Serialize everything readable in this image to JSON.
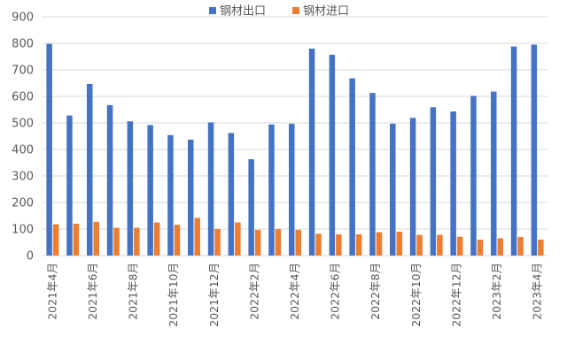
{
  "chart_data": {
    "type": "bar",
    "title": "",
    "xlabel": "",
    "ylabel": "",
    "ylim": [
      0,
      900
    ],
    "yticks": [
      0,
      100,
      200,
      300,
      400,
      500,
      600,
      700,
      800,
      900
    ],
    "grid": true,
    "legend_position": "top",
    "categories": [
      "2021年4月",
      "2021年5月",
      "2021年6月",
      "2021年7月",
      "2021年8月",
      "2021年9月",
      "2021年10月",
      "2021年11月",
      "2021年12月",
      "2022年1月",
      "2022年2月",
      "2022年3月",
      "2022年4月",
      "2022年5月",
      "2022年6月",
      "2022年7月",
      "2022年8月",
      "2022年9月",
      "2022年10月",
      "2022年11月",
      "2022年12月",
      "2023年1月",
      "2023年2月",
      "2023年3月",
      "2023年4月"
    ],
    "xtick_labels": [
      "2021年4月",
      "",
      "2021年6月",
      "",
      "2021年8月",
      "",
      "2021年10月",
      "",
      "2021年12月",
      "",
      "2022年2月",
      "",
      "2022年4月",
      "",
      "2022年6月",
      "",
      "2022年8月",
      "",
      "2022年10月",
      "",
      "2022年12月",
      "",
      "2023年2月",
      "",
      "2023年4月"
    ],
    "series": [
      {
        "name": "钢材出口",
        "color": "#4472c4",
        "values": [
          798,
          528,
          647,
          567,
          506,
          492,
          454,
          437,
          502,
          462,
          363,
          494,
          497,
          780,
          757,
          668,
          613,
          497,
          519,
          559,
          543,
          602,
          618,
          788,
          795
        ]
      },
      {
        "name": "钢材进口",
        "color": "#ed7d31",
        "values": [
          118,
          120,
          127,
          105,
          105,
          125,
          116,
          142,
          100,
          125,
          97,
          100,
          97,
          82,
          80,
          80,
          88,
          90,
          78,
          78,
          71,
          60,
          65,
          70,
          60
        ]
      }
    ]
  }
}
